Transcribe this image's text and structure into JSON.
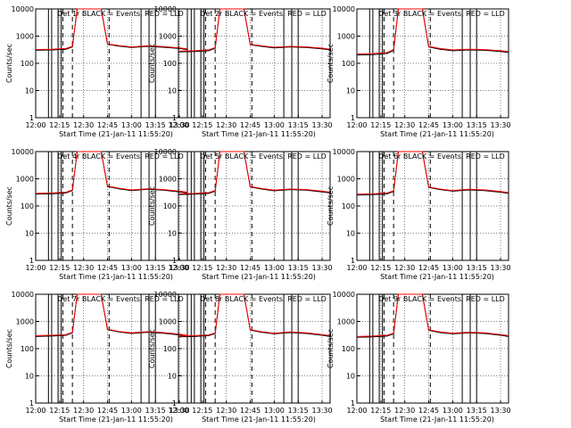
{
  "figure": {
    "xlabel": "Start Time (21-Jan-11 11:55:20)",
    "ylabel": "Counts/sec"
  },
  "shared": {
    "type": "line",
    "yscale": "log",
    "ylim": [
      1,
      10000
    ],
    "xlim": [
      "12:00",
      "13:35"
    ],
    "xticks": [
      "12:00",
      "12:15",
      "12:30",
      "12:45",
      "13:00",
      "13:15",
      "13:30"
    ],
    "yticks": [
      "1",
      "10",
      "100",
      "1000",
      "10000"
    ],
    "grid": true,
    "colors": {
      "events": "#000000",
      "lld": "#ff0000"
    },
    "solid_markers": [
      "12:08",
      "12:10",
      "12:14",
      "12:16",
      "13:06",
      "13:11",
      "13:15"
    ],
    "dashed_markers": [
      "12:17",
      "12:23",
      "12:46"
    ]
  },
  "chart_data": [
    {
      "type": "line",
      "title": "Det 1r BLACK = Events, RED = LLD",
      "series": [
        {
          "x": [
            "12:00",
            "12:10",
            "12:19",
            "12:23",
            "12:26",
            "12:41",
            "12:45",
            "12:52",
            "13:00",
            "13:10",
            "13:20",
            "13:30",
            "13:35"
          ],
          "values": [
            300,
            310,
            330,
            400,
            10000,
            10000,
            500,
            430,
            380,
            420,
            390,
            350,
            320
          ]
        },
        {
          "x": [
            "12:00",
            "12:10",
            "12:19",
            "12:23",
            "12:26",
            "12:41",
            "12:45",
            "12:52",
            "13:00",
            "13:10",
            "13:20",
            "13:30",
            "13:35"
          ],
          "values": [
            320,
            330,
            350,
            420,
            10000,
            10000,
            520,
            450,
            400,
            440,
            410,
            370,
            340
          ]
        }
      ]
    },
    {
      "type": "line",
      "title": "Det 2r BLACK = Events, RED = LLD",
      "series": [
        {
          "x": [
            "12:00",
            "12:10",
            "12:19",
            "12:23",
            "12:26",
            "12:41",
            "12:45",
            "12:52",
            "13:00",
            "13:10",
            "13:20",
            "13:30",
            "13:35"
          ],
          "values": [
            260,
            270,
            290,
            360,
            10000,
            10000,
            480,
            420,
            370,
            400,
            380,
            340,
            310
          ]
        },
        {
          "x": [
            "12:00",
            "12:10",
            "12:19",
            "12:23",
            "12:26",
            "12:41",
            "12:45",
            "12:52",
            "13:00",
            "13:10",
            "13:20",
            "13:30",
            "13:35"
          ],
          "values": [
            280,
            290,
            310,
            380,
            10000,
            10000,
            500,
            440,
            390,
            420,
            400,
            360,
            330
          ]
        }
      ]
    },
    {
      "type": "line",
      "title": "Det 3r BLACK = Events, RED = LLD",
      "series": [
        {
          "x": [
            "12:00",
            "12:10",
            "12:19",
            "12:23",
            "12:26",
            "12:41",
            "12:45",
            "12:52",
            "13:00",
            "13:10",
            "13:20",
            "13:30",
            "13:35"
          ],
          "values": [
            200,
            210,
            230,
            300,
            10000,
            10000,
            400,
            330,
            290,
            310,
            300,
            270,
            250
          ]
        },
        {
          "x": [
            "12:00",
            "12:10",
            "12:19",
            "12:23",
            "12:26",
            "12:41",
            "12:45",
            "12:52",
            "13:00",
            "13:10",
            "13:20",
            "13:30",
            "13:35"
          ],
          "values": [
            220,
            230,
            250,
            320,
            10000,
            10000,
            420,
            350,
            310,
            330,
            320,
            290,
            270
          ]
        }
      ]
    },
    {
      "type": "line",
      "title": "Det 4r BLACK = Events, RED = LLD",
      "series": [
        {
          "x": [
            "12:00",
            "12:10",
            "12:19",
            "12:23",
            "12:26",
            "12:41",
            "12:45",
            "12:52",
            "13:00",
            "13:10",
            "13:20",
            "13:30",
            "13:35"
          ],
          "values": [
            270,
            280,
            300,
            370,
            10000,
            10000,
            520,
            430,
            370,
            410,
            380,
            330,
            300
          ]
        },
        {
          "x": [
            "12:00",
            "12:10",
            "12:19",
            "12:23",
            "12:26",
            "12:41",
            "12:45",
            "12:52",
            "13:00",
            "13:10",
            "13:20",
            "13:30",
            "13:35"
          ],
          "values": [
            290,
            300,
            320,
            390,
            10000,
            10000,
            540,
            450,
            390,
            430,
            400,
            350,
            320
          ]
        }
      ]
    },
    {
      "type": "line",
      "title": "Det 5r BLACK = Events, RED = LLD",
      "series": [
        {
          "x": [
            "12:00",
            "12:10",
            "12:19",
            "12:23",
            "12:26",
            "12:41",
            "12:45",
            "12:52",
            "13:00",
            "13:10",
            "13:20",
            "13:30",
            "13:35"
          ],
          "values": [
            260,
            270,
            290,
            350,
            10000,
            10000,
            500,
            420,
            360,
            400,
            380,
            330,
            300
          ]
        },
        {
          "x": [
            "12:00",
            "12:10",
            "12:19",
            "12:23",
            "12:26",
            "12:41",
            "12:45",
            "12:52",
            "13:00",
            "13:10",
            "13:20",
            "13:30",
            "13:35"
          ],
          "values": [
            280,
            290,
            310,
            370,
            10000,
            10000,
            520,
            440,
            380,
            420,
            400,
            350,
            320
          ]
        }
      ]
    },
    {
      "type": "line",
      "title": "Det 6r BLACK = Events, RED = LLD",
      "series": [
        {
          "x": [
            "12:00",
            "12:10",
            "12:19",
            "12:23",
            "12:26",
            "12:41",
            "12:45",
            "12:52",
            "13:00",
            "13:10",
            "13:20",
            "13:30",
            "13:35"
          ],
          "values": [
            250,
            260,
            280,
            340,
            10000,
            10000,
            480,
            400,
            350,
            390,
            370,
            320,
            290
          ]
        },
        {
          "x": [
            "12:00",
            "12:10",
            "12:19",
            "12:23",
            "12:26",
            "12:41",
            "12:45",
            "12:52",
            "13:00",
            "13:10",
            "13:20",
            "13:30",
            "13:35"
          ],
          "values": [
            270,
            280,
            300,
            360,
            10000,
            10000,
            500,
            420,
            370,
            410,
            390,
            340,
            310
          ]
        }
      ]
    },
    {
      "type": "line",
      "title": "Det 7r BLACK = Events, RED = LLD",
      "series": [
        {
          "x": [
            "12:00",
            "12:10",
            "12:19",
            "12:23",
            "12:26",
            "12:41",
            "12:45",
            "12:52",
            "13:00",
            "13:10",
            "13:20",
            "13:30",
            "13:35"
          ],
          "values": [
            280,
            290,
            310,
            380,
            10000,
            10000,
            500,
            410,
            360,
            400,
            370,
            320,
            290
          ]
        },
        {
          "x": [
            "12:00",
            "12:10",
            "12:19",
            "12:23",
            "12:26",
            "12:41",
            "12:45",
            "12:52",
            "13:00",
            "13:10",
            "13:20",
            "13:30",
            "13:35"
          ],
          "values": [
            300,
            310,
            330,
            400,
            10000,
            10000,
            520,
            430,
            380,
            420,
            390,
            340,
            310
          ]
        }
      ]
    },
    {
      "type": "line",
      "title": "Det 8r BLACK = Events, RED = LLD",
      "series": [
        {
          "x": [
            "12:00",
            "12:10",
            "12:19",
            "12:23",
            "12:26",
            "12:41",
            "12:45",
            "12:52",
            "13:00",
            "13:10",
            "13:20",
            "13:30",
            "13:35"
          ],
          "values": [
            270,
            280,
            300,
            360,
            10000,
            10000,
            480,
            400,
            350,
            390,
            360,
            310,
            280
          ]
        },
        {
          "x": [
            "12:00",
            "12:10",
            "12:19",
            "12:23",
            "12:26",
            "12:41",
            "12:45",
            "12:52",
            "13:00",
            "13:10",
            "13:20",
            "13:30",
            "13:35"
          ],
          "values": [
            290,
            300,
            320,
            380,
            10000,
            10000,
            500,
            420,
            370,
            410,
            380,
            330,
            300
          ]
        }
      ]
    },
    {
      "type": "line",
      "title": "Det 9r BLACK = Events, RED = LLD",
      "series": [
        {
          "x": [
            "12:00",
            "12:10",
            "12:19",
            "12:23",
            "12:26",
            "12:41",
            "12:45",
            "12:52",
            "13:00",
            "13:10",
            "13:20",
            "13:30",
            "13:35"
          ],
          "values": [
            260,
            270,
            290,
            350,
            10000,
            10000,
            470,
            390,
            350,
            380,
            360,
            310,
            280
          ]
        },
        {
          "x": [
            "12:00",
            "12:10",
            "12:19",
            "12:23",
            "12:26",
            "12:41",
            "12:45",
            "12:52",
            "13:00",
            "13:10",
            "13:20",
            "13:30",
            "13:35"
          ],
          "values": [
            280,
            290,
            310,
            370,
            10000,
            10000,
            490,
            410,
            370,
            400,
            380,
            330,
            300
          ]
        }
      ]
    }
  ]
}
